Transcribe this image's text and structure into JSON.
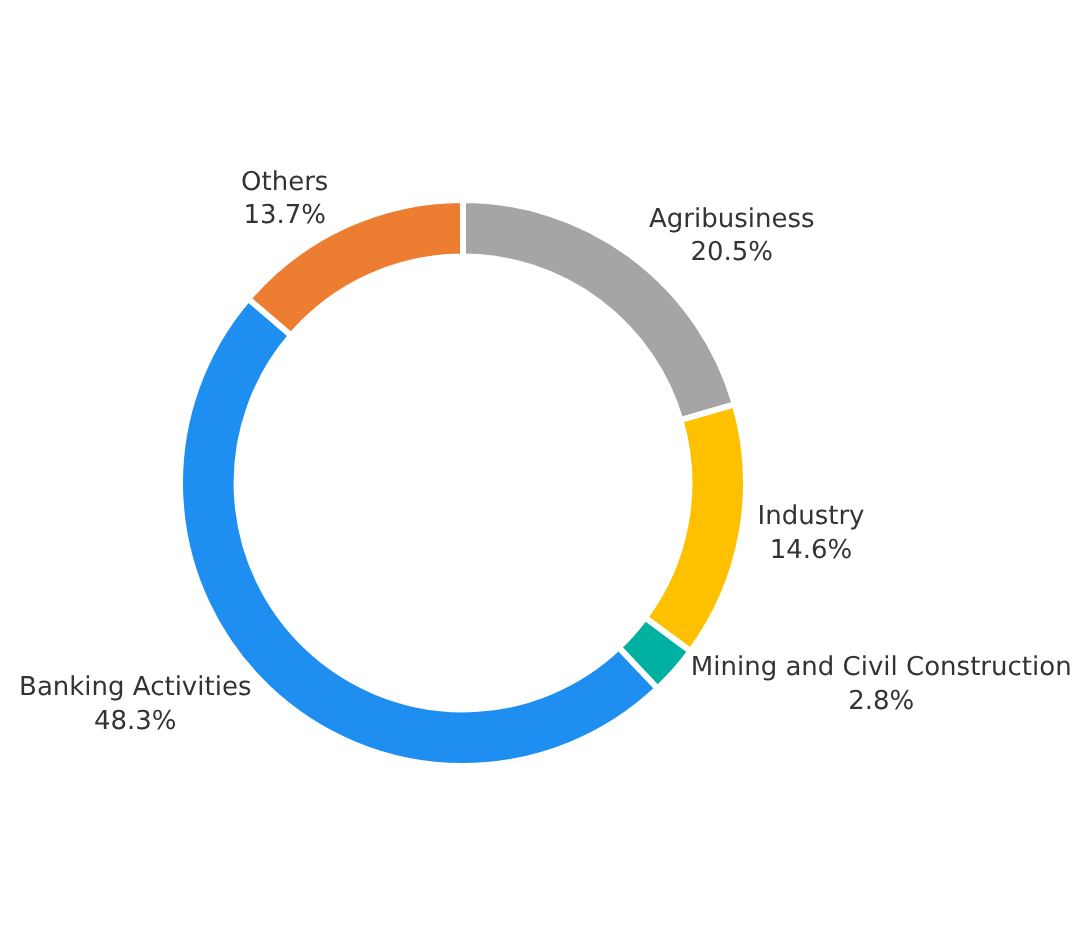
{
  "chart_data": {
    "type": "donut",
    "categories": [
      "Agribusiness",
      "Industry",
      "Mining and Civil Construction",
      "Banking Activities",
      "Others"
    ],
    "values": [
      20.5,
      14.6,
      2.8,
      48.3,
      13.7
    ],
    "colors": [
      "#a5a5a5",
      "#ffc000",
      "#00b0a0",
      "#1e8ff0",
      "#ed7d31"
    ],
    "value_labels": [
      "20.5%",
      "14.6%",
      "2.8%",
      "48.3%",
      "13.7%"
    ],
    "legend": false
  }
}
